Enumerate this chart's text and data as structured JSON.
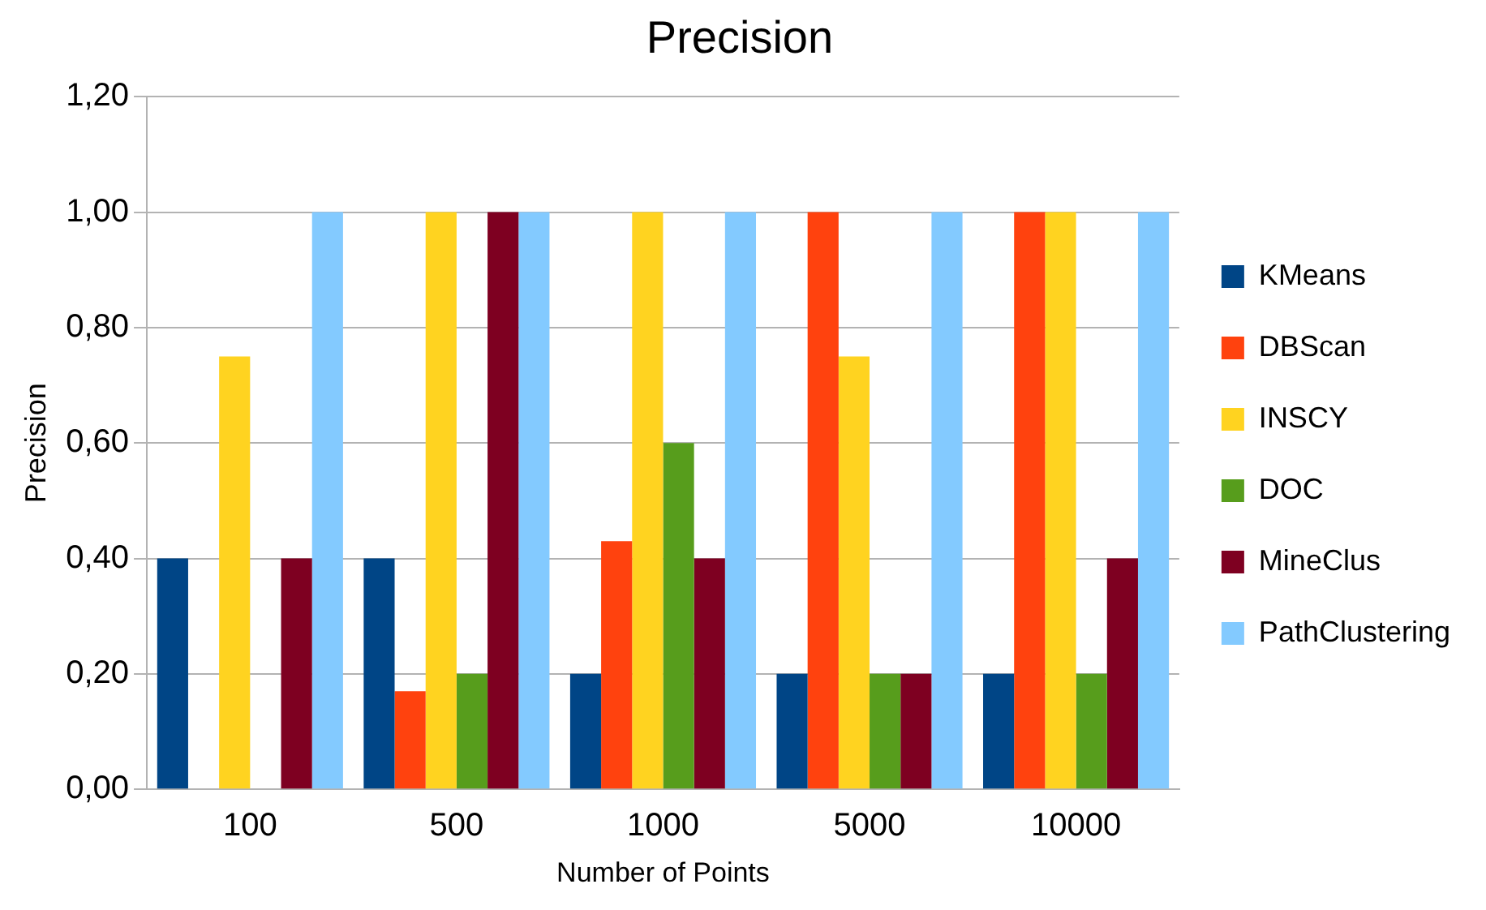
{
  "chart_data": {
    "type": "bar",
    "title": "Precision",
    "xlabel": "Number of Points",
    "ylabel": "Precision",
    "categories": [
      "100",
      "500",
      "1000",
      "5000",
      "10000"
    ],
    "series": [
      {
        "name": "KMeans",
        "color": "#004586",
        "values": [
          0.4,
          0.4,
          0.2,
          0.2,
          0.2
        ]
      },
      {
        "name": "DBScan",
        "color": "#ff420e",
        "values": [
          0,
          0.17,
          0.43,
          1.0,
          1.0
        ]
      },
      {
        "name": "INSCY",
        "color": "#ffd320",
        "values": [
          0.75,
          1.0,
          1.0,
          0.75,
          1.0
        ]
      },
      {
        "name": "DOC",
        "color": "#579d1c",
        "values": [
          0,
          0.2,
          0.6,
          0.2,
          0.2
        ]
      },
      {
        "name": "MineClus",
        "color": "#7e0021",
        "values": [
          0.4,
          1.0,
          0.4,
          0.2,
          0.4
        ]
      },
      {
        "name": "PathClustering",
        "color": "#83caff",
        "values": [
          1.0,
          1.0,
          1.0,
          1.0,
          1.0
        ]
      }
    ],
    "ylim": [
      0,
      1.2
    ],
    "yticks": [
      {
        "value": 0,
        "label": "0,00"
      },
      {
        "value": 0.2,
        "label": "0,20"
      },
      {
        "value": 0.4,
        "label": "0,40"
      },
      {
        "value": 0.6,
        "label": "0,60"
      },
      {
        "value": 0.8,
        "label": "0,80"
      },
      {
        "value": 1.0,
        "label": "1,00"
      },
      {
        "value": 1.2,
        "label": "1,20"
      }
    ],
    "grid": "y",
    "legend": "right"
  }
}
